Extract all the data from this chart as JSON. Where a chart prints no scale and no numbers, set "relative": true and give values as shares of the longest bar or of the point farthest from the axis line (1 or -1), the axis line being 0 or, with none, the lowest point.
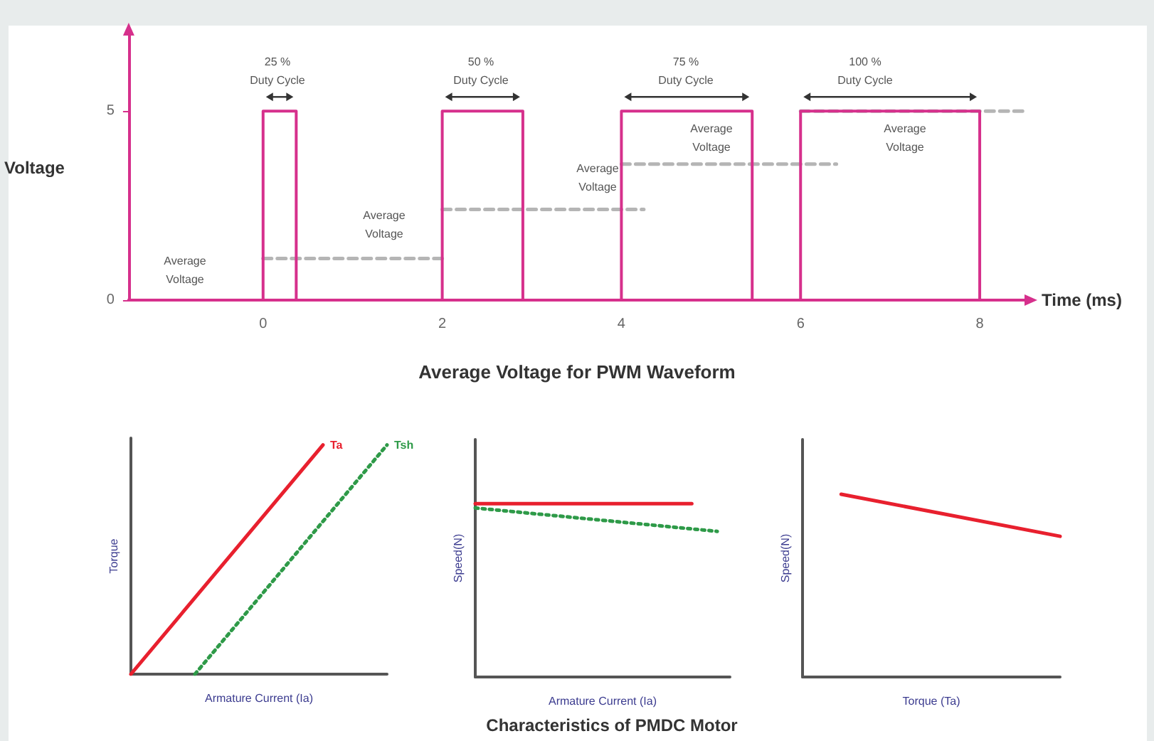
{
  "chart_data": [
    {
      "type": "line",
      "title": "Average Voltage for PWM Waveform",
      "xlabel": "Time (ms)",
      "ylabel": "Voltage",
      "xlim": [
        -1.5,
        8.5
      ],
      "xticks": [
        0,
        2,
        4,
        6,
        8
      ],
      "ylim": [
        0,
        7
      ],
      "yticks": [
        0,
        5
      ],
      "grid": false,
      "marker": "none",
      "series": [
        {
          "color": "#d6308c",
          "x": [
            -1.5,
            0,
            0,
            0.37,
            0.37,
            2,
            2,
            2.9,
            2.9,
            4,
            4,
            5.46,
            5.46,
            6,
            6,
            8,
            8
          ],
          "values": [
            0,
            0,
            5,
            5,
            0,
            0,
            5,
            5,
            0,
            0,
            5,
            5,
            0,
            0,
            5,
            5,
            0
          ]
        },
        {
          "color": "#b5b5b5",
          "line_style": "dashed",
          "x": [
            0,
            2
          ],
          "values": [
            1.1,
            1.1
          ]
        },
        {
          "color": "#b5b5b5",
          "line_style": "dashed",
          "x": [
            2,
            4.25
          ],
          "values": [
            2.4,
            2.4
          ]
        },
        {
          "color": "#b5b5b5",
          "line_style": "dashed",
          "x": [
            4,
            6.4
          ],
          "values": [
            3.6,
            3.6
          ]
        },
        {
          "color": "#b5b5b5",
          "line_style": "dashed",
          "x": [
            6,
            8.5
          ],
          "values": [
            5,
            5
          ]
        }
      ],
      "annotations": [
        "25 %\nDuty Cycle",
        "50 %\nDuty Cycle",
        "75 %\nDuty Cycle",
        "100 %\nDuty Cycle",
        "Average\nVoltage",
        "Average\nVoltage",
        "Average\nVoltage",
        "Average\nVoltage",
        "Average\nVoltage"
      ]
    },
    {
      "type": "line",
      "relative": true,
      "xlabel": "Armature Current (Ia)",
      "ylabel": "Torque",
      "grid": false,
      "marker": "none",
      "categories": [
        null,
        null,
        null,
        null,
        null,
        null,
        null,
        null,
        null,
        null,
        null,
        null,
        null,
        null,
        null,
        null,
        null,
        null,
        null,
        null,
        null
      ],
      "series": [
        {
          "name": "Ta",
          "color": "#e8202e",
          "line_style": "solid",
          "values": [
            0,
            null,
            null,
            null,
            null,
            null,
            null,
            null,
            null,
            null,
            null,
            null,
            null,
            null,
            null,
            1,
            null,
            null,
            null,
            null,
            null
          ]
        },
        {
          "name": "Tsh",
          "color": "#2e9a48",
          "line_style": "dotted",
          "values": [
            null,
            null,
            null,
            null,
            null,
            0,
            null,
            null,
            null,
            null,
            null,
            null,
            null,
            null,
            null,
            null,
            null,
            null,
            null,
            null,
            1
          ]
        }
      ]
    },
    {
      "type": "line",
      "relative": true,
      "xlabel": "Armature Current (Ia)",
      "ylabel": "Speed(N)",
      "grid": false,
      "marker": "none",
      "annotations": [
        "Characteristics of PMDC Motor"
      ],
      "categories": [
        null,
        null,
        null,
        null,
        null,
        null,
        null,
        null,
        null,
        null,
        null,
        null,
        null,
        null,
        null,
        null,
        null,
        null,
        null,
        null,
        null
      ],
      "series": [
        {
          "color": "#e8202e",
          "line_style": "solid",
          "values": [
            1,
            null,
            null,
            null,
            null,
            null,
            null,
            null,
            null,
            null,
            null,
            null,
            null,
            null,
            null,
            null,
            null,
            1,
            null,
            null,
            null
          ]
        },
        {
          "color": "#2e9a48",
          "line_style": "dotted",
          "values": [
            0.975,
            null,
            null,
            null,
            null,
            null,
            null,
            null,
            null,
            null,
            null,
            null,
            null,
            null,
            null,
            null,
            null,
            null,
            null,
            0.84,
            null
          ]
        }
      ]
    },
    {
      "type": "line",
      "relative": true,
      "xlabel": "Torque (Ta)",
      "ylabel": "Speed(N)",
      "grid": false,
      "marker": "none",
      "categories": [
        null,
        null,
        null,
        null,
        null,
        null,
        null,
        null,
        null,
        null,
        null,
        null,
        null,
        null,
        null,
        null,
        null,
        null,
        null,
        null,
        null
      ],
      "series": [
        {
          "color": "#e8202e",
          "line_style": "solid",
          "values": [
            null,
            null,
            null,
            1,
            null,
            null,
            null,
            null,
            null,
            null,
            null,
            null,
            null,
            null,
            null,
            null,
            null,
            null,
            null,
            null,
            0.77
          ]
        }
      ]
    }
  ]
}
